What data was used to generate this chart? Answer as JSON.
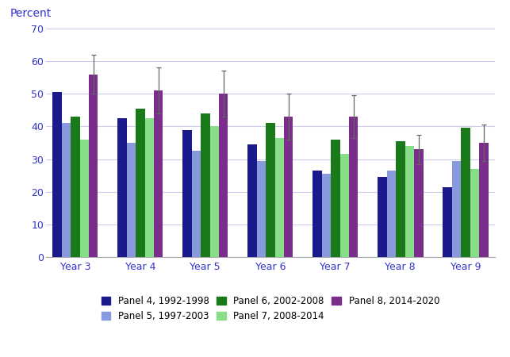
{
  "categories": [
    "Year 3",
    "Year 4",
    "Year 5",
    "Year 6",
    "Year 7",
    "Year 8",
    "Year 9"
  ],
  "series": {
    "Panel 4, 1992-1998": [
      50.5,
      42.5,
      39.0,
      34.5,
      26.5,
      24.5,
      21.5
    ],
    "Panel 5, 1997-2003": [
      41.0,
      35.0,
      32.5,
      29.5,
      25.5,
      26.5,
      29.5
    ],
    "Panel 6, 2002-2008": [
      43.0,
      45.5,
      44.0,
      41.0,
      36.0,
      35.5,
      39.5
    ],
    "Panel 7, 2008-2014": [
      36.0,
      42.5,
      40.0,
      36.5,
      31.5,
      34.0,
      27.0
    ],
    "Panel 8, 2014-2020": [
      56.0,
      51.0,
      50.0,
      43.0,
      43.0,
      33.0,
      35.0
    ]
  },
  "error_bars": {
    "Panel 4, 1992-1998": [
      null,
      null,
      null,
      null,
      null,
      null,
      null
    ],
    "Panel 5, 1997-2003": [
      null,
      null,
      null,
      null,
      null,
      null,
      null
    ],
    "Panel 6, 2002-2008": [
      null,
      null,
      null,
      null,
      null,
      null,
      null
    ],
    "Panel 7, 2008-2014": [
      null,
      null,
      null,
      null,
      null,
      null,
      null
    ],
    "Panel 8, 2014-2020": [
      6.0,
      7.0,
      7.0,
      7.0,
      6.5,
      4.5,
      5.5
    ]
  },
  "colors": {
    "Panel 4, 1992-1998": "#1a1a8c",
    "Panel 5, 1997-2003": "#8899dd",
    "Panel 6, 2002-2008": "#1a7a1a",
    "Panel 7, 2008-2014": "#88dd88",
    "Panel 8, 2014-2020": "#7b2d8b"
  },
  "percent_label": "Percent",
  "ylim": [
    0,
    70
  ],
  "yticks": [
    0,
    10,
    20,
    30,
    40,
    50,
    60,
    70
  ],
  "background_color": "#ffffff",
  "grid_color": "#ccccee",
  "label_color": "#3333cc",
  "legend_order": [
    "Panel 4, 1992-1998",
    "Panel 5, 1997-2003",
    "Panel 6, 2002-2008",
    "Panel 7, 2008-2014",
    "Panel 8, 2014-2020"
  ]
}
